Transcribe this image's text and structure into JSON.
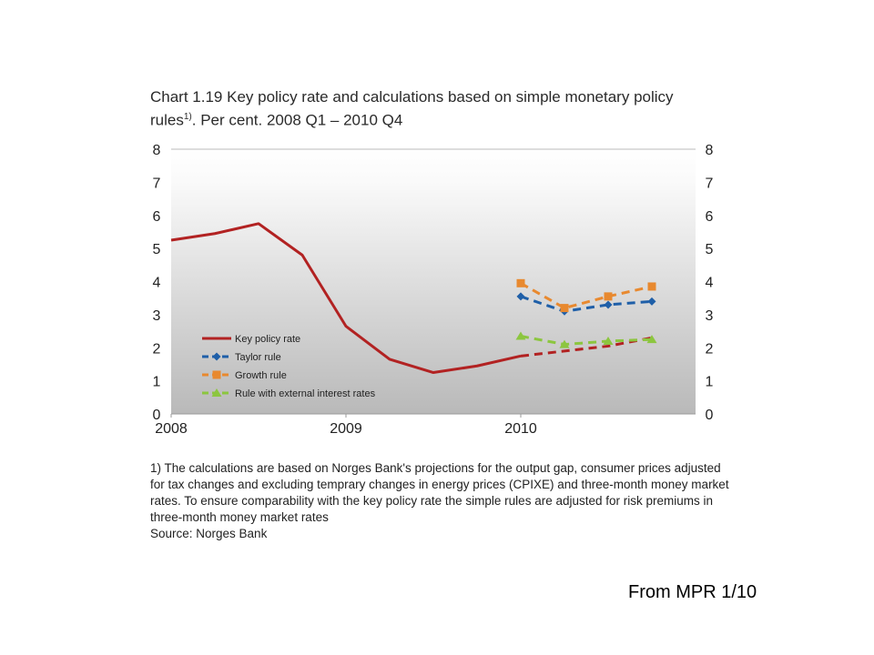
{
  "title_main": "Chart 1.19 Key policy rate and calculations based on simple monetary policy rules",
  "title_sup": "1)",
  "title_tail": ". Per cent. 2008 Q1 – 2010 Q4",
  "footnote": "1) The calculations are based on Norges Bank's projections for the output gap, consumer prices adjusted for tax changes and excluding temprary changes in energy prices (CPIXE) and three-month money market rates. To ensure comparability with the key policy rate the simple rules are adjusted for risk premiums in three-month money market rates",
  "source": "Source: Norges Bank",
  "credit": "From  MPR 1/10",
  "chart_data": {
    "type": "line",
    "xlim": [
      2008.0,
      2011.0
    ],
    "ylim": [
      0,
      8
    ],
    "y_ticks": [
      0,
      1,
      2,
      3,
      4,
      5,
      6,
      7,
      8
    ],
    "x_ticks": [
      {
        "value": 2008,
        "label": "2008"
      },
      {
        "value": 2009,
        "label": "2009"
      },
      {
        "value": 2010,
        "label": "2010"
      }
    ],
    "grid": false,
    "dual_y_axis": true,
    "legend_position": "bottom-left",
    "series": [
      {
        "name": "Key policy rate",
        "color": "#b22222",
        "style": "solid",
        "marker": "none",
        "x": [
          2008.0,
          2008.25,
          2008.5,
          2008.75,
          2009.0,
          2009.25,
          2009.5,
          2009.75,
          2010.0
        ],
        "y": [
          5.25,
          5.45,
          5.75,
          4.8,
          2.65,
          1.65,
          1.25,
          1.45,
          1.75
        ]
      },
      {
        "name": "",
        "color": "#b22222",
        "style": "dashed",
        "marker": "none",
        "x": [
          2010.0,
          2010.25,
          2010.5,
          2010.75
        ],
        "y": [
          1.75,
          1.9,
          2.05,
          2.3
        ]
      },
      {
        "name": "Taylor rule",
        "color": "#1f5fa8",
        "style": "dashed",
        "marker": "diamond",
        "x": [
          2010.0,
          2010.25,
          2010.5,
          2010.75
        ],
        "y": [
          3.55,
          3.1,
          3.3,
          3.4
        ]
      },
      {
        "name": "Growth rule",
        "color": "#e8892f",
        "style": "dashed",
        "marker": "square",
        "x": [
          2010.0,
          2010.25,
          2010.5,
          2010.75
        ],
        "y": [
          3.95,
          3.2,
          3.55,
          3.85
        ]
      },
      {
        "name": "Rule with external interest rates",
        "color": "#8cc63f",
        "style": "dashed",
        "marker": "triangle",
        "x": [
          2010.0,
          2010.25,
          2010.5,
          2010.75
        ],
        "y": [
          2.35,
          2.1,
          2.2,
          2.25
        ]
      }
    ]
  }
}
